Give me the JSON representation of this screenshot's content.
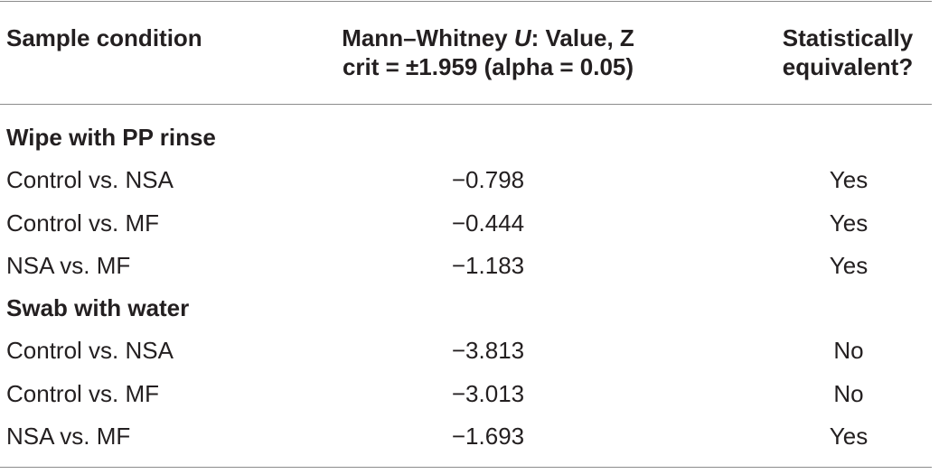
{
  "header": {
    "col1": "Sample condition",
    "col2_line1_prefix": "Mann–Whitney ",
    "col2_line1_italic": "U",
    "col2_line1_suffix": ": Value, Z",
    "col2_line2": "crit = ±1.959 (alpha = 0.05)",
    "col3_line1": "Statistically",
    "col3_line2": "equivalent?"
  },
  "sections": [
    {
      "title": "Wipe with PP rinse",
      "rows": [
        {
          "condition": "Control vs. NSA",
          "value": "−0.798",
          "equivalent": "Yes"
        },
        {
          "condition": "Control vs. MF",
          "value": "−0.444",
          "equivalent": "Yes"
        },
        {
          "condition": "NSA vs. MF",
          "value": "−1.183",
          "equivalent": "Yes"
        }
      ]
    },
    {
      "title": "Swab with water",
      "rows": [
        {
          "condition": "Control vs. NSA",
          "value": "−3.813",
          "equivalent": "No"
        },
        {
          "condition": "Control vs. MF",
          "value": "−3.013",
          "equivalent": "No"
        },
        {
          "condition": "NSA vs. MF",
          "value": "−1.693",
          "equivalent": "Yes"
        }
      ]
    }
  ]
}
